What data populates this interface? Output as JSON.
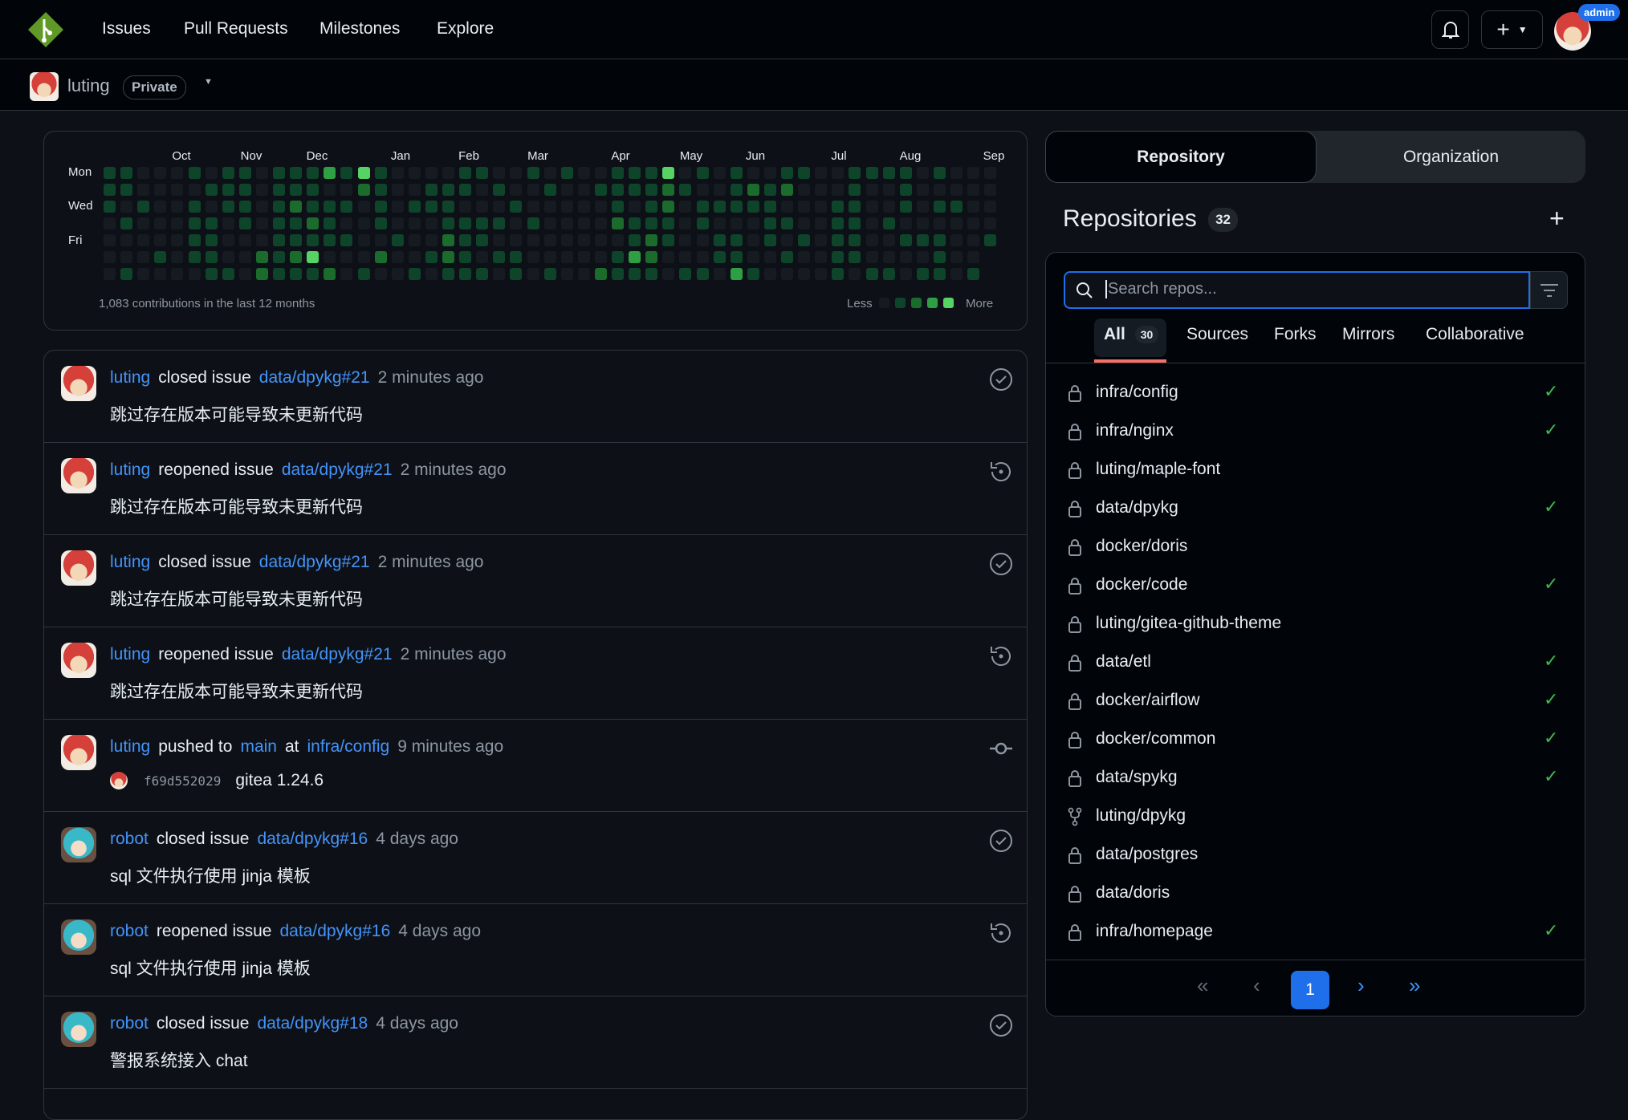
{
  "nav": {
    "items": [
      {
        "label": "Issues"
      },
      {
        "label": "Pull Requests"
      },
      {
        "label": "Milestones"
      },
      {
        "label": "Explore"
      }
    ],
    "admin_badge": "admin",
    "logo_color": "#609926"
  },
  "context": {
    "user": "luting",
    "visibility": "Private"
  },
  "heatmap": {
    "months": [
      "Oct",
      "Nov",
      "Dec",
      "Jan",
      "Feb",
      "Mar",
      "Apr",
      "May",
      "Jun",
      "Jul",
      "Aug",
      "Sep"
    ],
    "days": [
      "Mon",
      "Wed",
      "Fri"
    ],
    "summary": "1,083 contributions in the last 12 months",
    "less": "Less",
    "more": "More",
    "level_colors": [
      "#161b22",
      "#0e4429",
      "#1a6b2c",
      "#2ea043",
      "#56d364"
    ],
    "rows": [
      "11000101101113141000011001010011140101001100111101000",
      "11000011101110021001110100100111121001212000100100000",
      "10100101101211101011100010000010120111110001100101100",
      "01000110101121001000111101000021110100011001101000000",
      "00000110001111100100211000000001210011010101100111001",
      "0001011002124000200121011000001320001100100110000100x",
      "0100001102111201001011101010021110110310000101101101x"
    ]
  },
  "feed": [
    {
      "user": "luting",
      "action": "closed issue",
      "ref": "data/dpykg#21",
      "time": "2 minutes ago",
      "body": "跳过存在版本可能导致未更新代码",
      "icon": "issue-closed-icon",
      "avatar": "red"
    },
    {
      "user": "luting",
      "action": "reopened issue",
      "ref": "data/dpykg#21",
      "time": "2 minutes ago",
      "body": "跳过存在版本可能导致未更新代码",
      "icon": "issue-reopened-icon",
      "avatar": "red"
    },
    {
      "user": "luting",
      "action": "closed issue",
      "ref": "data/dpykg#21",
      "time": "2 minutes ago",
      "body": "跳过存在版本可能导致未更新代码",
      "icon": "issue-closed-icon",
      "avatar": "red"
    },
    {
      "user": "luting",
      "action": "reopened issue",
      "ref": "data/dpykg#21",
      "time": "2 minutes ago",
      "body": "跳过存在版本可能导致未更新代码",
      "icon": "issue-reopened-icon",
      "avatar": "red"
    },
    {
      "user": "luting",
      "action": "pushed to",
      "branch": "main",
      "at": "at",
      "ref": "infra/config",
      "time": "9 minutes ago",
      "sha": "f69d552029",
      "body": "gitea 1.24.6",
      "icon": "commit-icon",
      "avatar": "red"
    },
    {
      "user": "robot",
      "action": "closed issue",
      "ref": "data/dpykg#16",
      "time": "4 days ago",
      "body": "sql 文件执行使用 jinja 模板",
      "icon": "issue-closed-icon",
      "avatar": "blue"
    },
    {
      "user": "robot",
      "action": "reopened issue",
      "ref": "data/dpykg#16",
      "time": "4 days ago",
      "body": "sql 文件执行使用 jinja 模板",
      "icon": "issue-reopened-icon",
      "avatar": "blue"
    },
    {
      "user": "robot",
      "action": "closed issue",
      "ref": "data/dpykg#18",
      "time": "4 days ago",
      "body": "警报系统接入 chat",
      "icon": "issue-closed-icon",
      "avatar": "blue"
    }
  ],
  "sidebar": {
    "toggle": [
      "Repository",
      "Organization"
    ],
    "title": "Repositories",
    "count": "32",
    "search_placeholder": "Search repos...",
    "tabs": [
      {
        "label": "All",
        "count": "30"
      },
      {
        "label": "Sources"
      },
      {
        "label": "Forks"
      },
      {
        "label": "Mirrors"
      },
      {
        "label": "Collaborative"
      }
    ],
    "repos": [
      {
        "name": "infra/config",
        "icon": "lock",
        "check": true
      },
      {
        "name": "infra/nginx",
        "icon": "lock",
        "check": true
      },
      {
        "name": "luting/maple-font",
        "icon": "lock",
        "check": false
      },
      {
        "name": "data/dpykg",
        "icon": "lock",
        "check": true
      },
      {
        "name": "docker/doris",
        "icon": "lock",
        "check": false
      },
      {
        "name": "docker/code",
        "icon": "lock",
        "check": true
      },
      {
        "name": "luting/gitea-github-theme",
        "icon": "lock",
        "check": false
      },
      {
        "name": "data/etl",
        "icon": "lock",
        "check": true
      },
      {
        "name": "docker/airflow",
        "icon": "lock",
        "check": true
      },
      {
        "name": "docker/common",
        "icon": "lock",
        "check": true
      },
      {
        "name": "data/spykg",
        "icon": "lock",
        "check": true
      },
      {
        "name": "luting/dpykg",
        "icon": "fork",
        "check": false
      },
      {
        "name": "data/postgres",
        "icon": "lock",
        "check": false
      },
      {
        "name": "data/doris",
        "icon": "lock",
        "check": false
      },
      {
        "name": "infra/homepage",
        "icon": "lock",
        "check": true
      }
    ],
    "pagination": {
      "current": "1"
    },
    "accent": "#1f6feb"
  }
}
